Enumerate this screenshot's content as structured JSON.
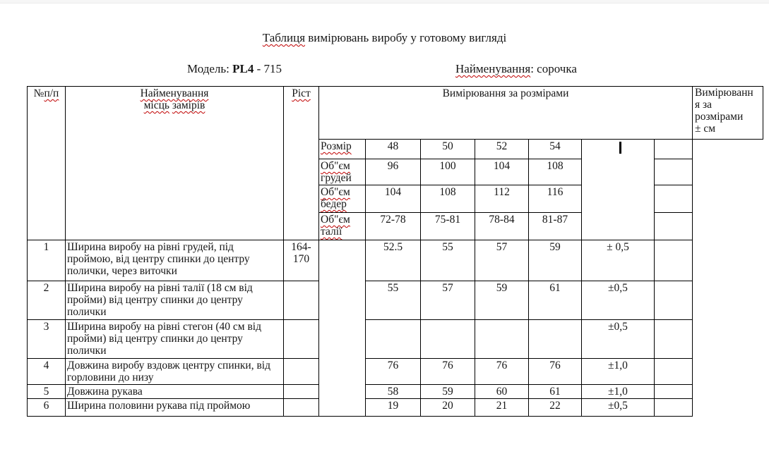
{
  "title": [
    {
      "t": "Таблиця",
      "sp": true
    },
    {
      "t": " вимірювань виробу у готовому вигляді"
    }
  ],
  "model_line": [
    {
      "t": "Модель:  "
    },
    {
      "t": "PL4",
      "b": true
    },
    {
      "t": " -  715"
    }
  ],
  "name_line": [
    {
      "t": "Найменування",
      "sp": true
    },
    {
      "t": ":  сорочка"
    }
  ],
  "table": {
    "col_num_header": [
      {
        "t": "№"
      },
      {
        "t": "п/п",
        "sp": true
      }
    ],
    "col_name_header_line1": [
      {
        "t": "Найменування",
        "sp": true
      }
    ],
    "col_name_header_line2": [
      {
        "t": "місць",
        "sp": true
      },
      {
        "t": " "
      },
      {
        "t": "замірів",
        "sp": true
      }
    ],
    "col_height_header": [
      {
        "t": "Ріст",
        "sp": true
      }
    ],
    "sizes_header": [
      {
        "t": "Вимірювання за розмірами"
      }
    ],
    "tolerance_box_text": "Вимірюванн\nя за\nрозмірами\n± см",
    "size_rows": [
      {
        "label": [
          [
            {
              "t": "Розмір",
              "sp": true
            }
          ]
        ],
        "values": [
          "48",
          "50",
          "52",
          "54"
        ]
      },
      {
        "label": [
          [
            {
              "t": "Об\"єм",
              "sp": true
            }
          ],
          [
            {
              "t": "грудей"
            }
          ]
        ],
        "values": [
          "96",
          "100",
          "104",
          "108"
        ]
      },
      {
        "label": [
          [
            {
              "t": "Об\"єм",
              "sp": true
            }
          ],
          [
            {
              "t": "бедер",
              "sp": true
            }
          ]
        ],
        "values": [
          "104",
          "108",
          "112",
          "116"
        ]
      },
      {
        "label": [
          [
            {
              "t": "Об\"єм",
              "sp": true
            }
          ],
          [
            {
              "t": "талії",
              "sp": true
            }
          ]
        ],
        "values": [
          "72-78",
          "75-81",
          "78-84",
          "81-87"
        ]
      }
    ],
    "rows": [
      {
        "num": "1",
        "desc": "Ширина виробу на рівні грудей, під проймою, від центру спинки до центру полички, через виточки",
        "rist": "164-\n170",
        "values": [
          "52.5",
          "55",
          "57",
          "59"
        ],
        "tol": "± 0,5"
      },
      {
        "num": "2",
        "desc": "Ширина виробу на рівні талії (18 см від пройми) від центру спинки до центру полички",
        "rist": "",
        "values": [
          "55",
          "57",
          "59",
          "61"
        ],
        "tol": "±0,5"
      },
      {
        "num": "3",
        "desc": "Ширина виробу на рівні стегон (40 см від пройми) від центру спинки до центру полички",
        "rist": "",
        "values": [
          "",
          "",
          "",
          ""
        ],
        "tol": "±0,5"
      },
      {
        "num": "4",
        "desc": "Довжина виробу вздовж центру спинки, від горловини до низу",
        "rist": "",
        "values": [
          "76",
          "76",
          "76",
          "76"
        ],
        "tol": "±1,0"
      },
      {
        "num": "5",
        "desc": "Довжина рукава",
        "rist": "",
        "values": [
          "58",
          "59",
          "60",
          "61"
        ],
        "tol": "±1,0"
      },
      {
        "num": "6",
        "desc": "Ширина половини рукава під проймою",
        "rist": "",
        "values": [
          "19",
          "20",
          "21",
          "22"
        ],
        "tol": "±0,5"
      }
    ]
  },
  "colors": {
    "squiggle": "#c00000",
    "border": "#000000",
    "background": "#ffffff"
  }
}
